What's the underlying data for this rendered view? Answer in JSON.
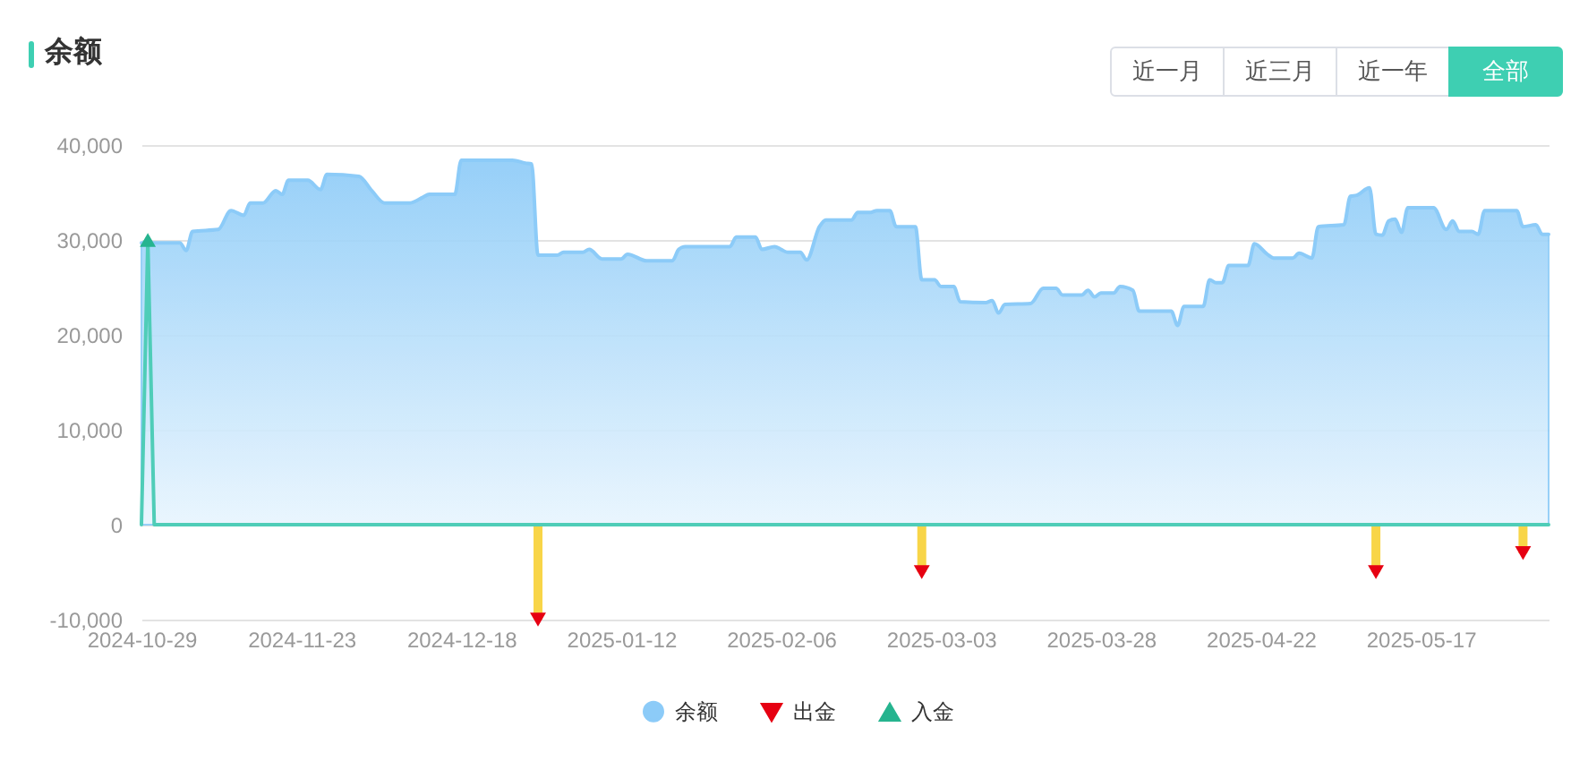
{
  "chart_data": {
    "type": "area",
    "title": "余额",
    "annotations": [
      "近一月",
      "近三月",
      "近一年",
      "全部"
    ],
    "x": [
      "2024-10-29",
      "2024-11-04",
      "2024-11-05",
      "2024-11-06",
      "2024-11-10",
      "2024-11-12",
      "2024-11-14",
      "2024-11-15",
      "2024-11-17",
      "2024-11-19",
      "2024-11-20",
      "2024-11-21",
      "2024-11-24",
      "2024-11-26",
      "2024-11-27",
      "2024-12-02",
      "2024-12-04",
      "2024-12-06",
      "2024-12-10",
      "2024-12-12",
      "2024-12-13",
      "2024-12-17",
      "2024-12-18",
      "2024-12-26",
      "2024-12-28",
      "2024-12-29",
      "2024-12-30",
      "2025-01-02",
      "2025-01-03",
      "2025-01-06",
      "2025-01-07",
      "2025-01-09",
      "2025-01-12",
      "2025-01-13",
      "2025-01-16",
      "2025-01-20",
      "2025-01-21",
      "2025-01-22",
      "2025-01-29",
      "2025-01-30",
      "2025-02-02",
      "2025-02-03",
      "2025-02-05",
      "2025-02-06",
      "2025-02-07",
      "2025-02-09",
      "2025-02-10",
      "2025-02-12",
      "2025-02-13",
      "2025-02-17",
      "2025-02-18",
      "2025-02-20",
      "2025-02-21",
      "2025-02-23",
      "2025-02-24",
      "2025-02-27",
      "2025-02-28",
      "2025-03-02",
      "2025-03-03",
      "2025-03-05",
      "2025-03-06",
      "2025-03-10",
      "2025-03-11",
      "2025-03-12",
      "2025-03-13",
      "2025-03-17",
      "2025-03-19",
      "2025-03-21",
      "2025-03-22",
      "2025-03-25",
      "2025-03-26",
      "2025-03-27",
      "2025-03-28",
      "2025-03-30",
      "2025-03-31",
      "2025-04-02",
      "2025-04-03",
      "2025-04-08",
      "2025-04-09",
      "2025-04-10",
      "2025-04-13",
      "2025-04-14",
      "2025-04-15",
      "2025-04-16",
      "2025-04-17",
      "2025-04-20",
      "2025-04-21",
      "2025-04-23",
      "2025-04-24",
      "2025-04-27",
      "2025-04-28",
      "2025-04-30",
      "2025-05-01",
      "2025-05-05",
      "2025-05-06",
      "2025-05-07",
      "2025-05-09",
      "2025-05-10",
      "2025-05-11",
      "2025-05-12",
      "2025-05-13",
      "2025-05-14",
      "2025-05-15",
      "2025-05-19",
      "2025-05-21",
      "2025-05-22",
      "2025-05-23",
      "2025-05-25",
      "2025-05-26",
      "2025-05-27",
      "2025-06-01",
      "2025-06-02",
      "2025-06-04",
      "2025-06-05",
      "2025-06-06"
    ],
    "series": [
      {
        "name": "余额",
        "color": "#8ccbf8",
        "values": [
          29700,
          29700,
          28900,
          30900,
          31100,
          33100,
          32600,
          33900,
          33900,
          35200,
          34800,
          36300,
          36300,
          35300,
          36900,
          36700,
          35200,
          33900,
          33900,
          34500,
          34800,
          34800,
          38400,
          38400,
          38100,
          38000,
          28400,
          28400,
          28700,
          28700,
          29000,
          28000,
          28000,
          28500,
          27800,
          27800,
          29000,
          29300,
          29300,
          30300,
          30300,
          29000,
          29300,
          29000,
          28700,
          28700,
          27900,
          31400,
          32100,
          32100,
          32900,
          32900,
          33100,
          33100,
          31400,
          31400,
          25800,
          25800,
          25100,
          25100,
          23500,
          23400,
          23600,
          22300,
          23200,
          23300,
          24900,
          24900,
          24200,
          24200,
          24700,
          24000,
          24400,
          24400,
          25100,
          24700,
          22500,
          22500,
          21000,
          23000,
          23000,
          25800,
          25500,
          25500,
          27300,
          27300,
          29600,
          28500,
          28100,
          28100,
          28600,
          28100,
          31400,
          31600,
          34600,
          34700,
          35500,
          30600,
          30500,
          32000,
          32200,
          30800,
          33400,
          33400,
          31100,
          32000,
          30900,
          30900,
          30600,
          33100,
          33100,
          31400,
          31600,
          30600,
          30600
        ]
      },
      {
        "type": "bar",
        "color": "#f8d548",
        "x": [
          "2024-12-30",
          "2025-02-28",
          "2025-05-10",
          "2025-06-02"
        ],
        "values": [
          -10000,
          -5000,
          -5000,
          -3000
        ]
      },
      {
        "name": "出金",
        "type": "scatter",
        "color": "#e60012",
        "marker": "triangle",
        "x": [
          "2024-12-30",
          "2025-02-28",
          "2025-05-10",
          "2025-06-02"
        ],
        "values": [
          -10000,
          -5000,
          -5000,
          -3000
        ]
      },
      {
        "type": "line",
        "color": "#4fcdb8",
        "x": [
          "2024-10-29",
          "2024-10-30",
          "2024-10-31",
          "2025-06-06"
        ],
        "values": [
          0,
          30000,
          0,
          0
        ]
      },
      {
        "name": "入金",
        "type": "scatter",
        "color": "#26b48f",
        "marker": "triangle",
        "x": [
          "2024-10-30"
        ],
        "values": [
          30000
        ]
      }
    ],
    "xlim": [
      "2024-10-29",
      "2025-06-06"
    ],
    "xticks": [
      "2024-10-29",
      "2024-11-23",
      "2024-12-18",
      "2025-01-12",
      "2025-02-06",
      "2025-03-03",
      "2025-03-28",
      "2025-04-22",
      "2025-05-17"
    ],
    "ylim": [
      -10000,
      40000
    ],
    "yticks": [
      {
        "value": -10000,
        "label": "-10,000"
      },
      0,
      {
        "value": 10000,
        "label": "10,000"
      },
      {
        "value": 20000,
        "label": "20,000"
      },
      {
        "value": 30000,
        "label": "30,000"
      },
      {
        "value": 40000,
        "label": "40,000"
      }
    ],
    "grid": "y",
    "legend": "bottom"
  }
}
